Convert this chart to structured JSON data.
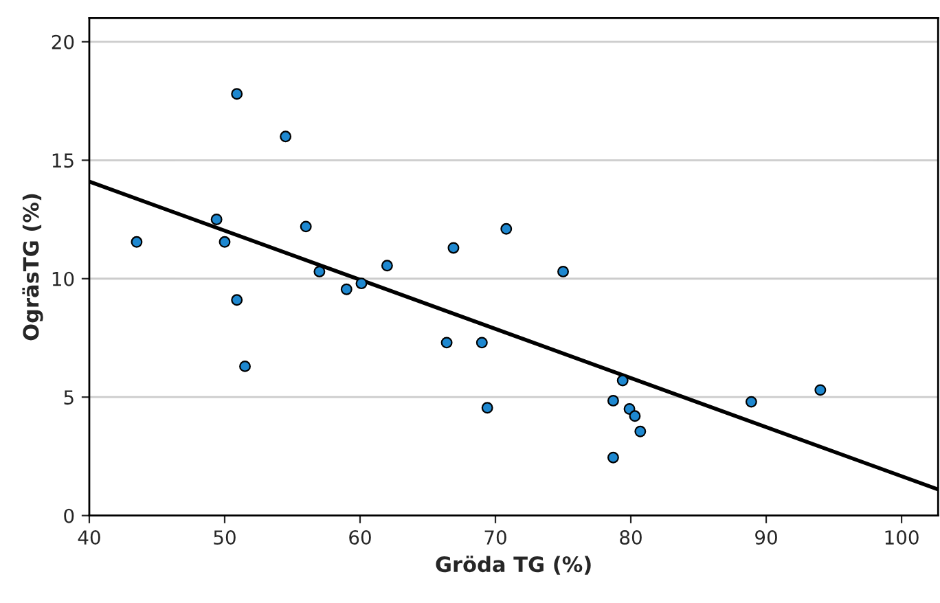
{
  "chart_data": {
    "type": "scatter",
    "xlabel": "Gröda TG (%)",
    "ylabel": "OgräsTG (%)",
    "xlim": [
      40,
      102.7
    ],
    "ylim": [
      0,
      21
    ],
    "xticks": [
      40,
      50,
      60,
      70,
      80,
      90,
      100
    ],
    "yticks": [
      0,
      5,
      10,
      15,
      20
    ],
    "grid": "y",
    "series": [
      {
        "type": "scatter",
        "marker": "circle",
        "color": "#1e88d0",
        "x": [
          43.5,
          50.9,
          49.4,
          50.0,
          50.9,
          51.5,
          54.5,
          56.0,
          57.0,
          59.0,
          60.1,
          62.0,
          66.4,
          66.9,
          69.0,
          69.4,
          70.8,
          75.0,
          78.7,
          78.7,
          79.4,
          79.9,
          80.3,
          80.7,
          88.9,
          94.0
        ],
        "values": [
          11.55,
          17.8,
          12.5,
          11.55,
          9.1,
          6.3,
          16.0,
          12.2,
          10.3,
          9.55,
          9.8,
          10.55,
          7.3,
          11.3,
          7.3,
          4.55,
          12.1,
          10.3,
          4.85,
          2.45,
          5.7,
          4.5,
          4.2,
          3.55,
          4.8,
          5.3
        ]
      },
      {
        "type": "line",
        "color": "#000000",
        "x": [
          40,
          102.7
        ],
        "values": [
          14.1,
          1.1
        ]
      }
    ]
  }
}
